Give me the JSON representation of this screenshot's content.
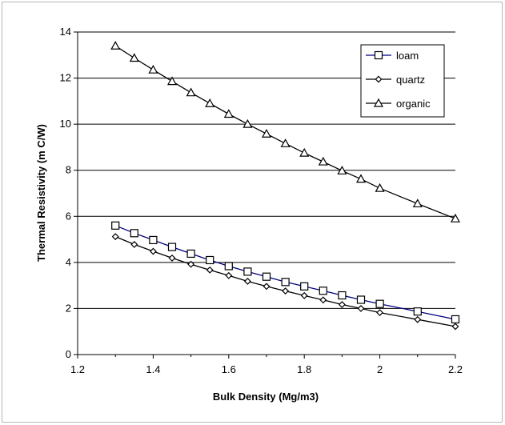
{
  "chart_data": {
    "type": "line",
    "title": "",
    "xlabel": "Bulk Density (Mg/m3)",
    "ylabel": "Thermal Resistivity (m C/W)",
    "xlim": [
      1.2,
      2.2
    ],
    "ylim": [
      0,
      14
    ],
    "xticks": [
      "1.2",
      "1.4",
      "1.6",
      "1.8",
      "2",
      "2.2"
    ],
    "yticks": [
      "0",
      "2",
      "4",
      "6",
      "8",
      "10",
      "12",
      "14"
    ],
    "grid": "horizontal",
    "legend_position": "top-right",
    "series": [
      {
        "name": "loam",
        "marker": "square",
        "color": "#000080",
        "x": [
          1.3,
          1.35,
          1.4,
          1.45,
          1.5,
          1.55,
          1.6,
          1.65,
          1.7,
          1.75,
          1.8,
          1.85,
          1.9,
          1.95,
          2.0,
          2.1,
          2.2
        ],
        "y": [
          5.6,
          5.27,
          4.97,
          4.67,
          4.38,
          4.1,
          3.84,
          3.6,
          3.38,
          3.15,
          2.96,
          2.77,
          2.57,
          2.38,
          2.2,
          1.87,
          1.53
        ]
      },
      {
        "name": "quartz",
        "marker": "diamond",
        "color": "#000000",
        "x": [
          1.3,
          1.35,
          1.4,
          1.45,
          1.5,
          1.55,
          1.6,
          1.65,
          1.7,
          1.75,
          1.8,
          1.85,
          1.9,
          1.95,
          2.0,
          2.1,
          2.2
        ],
        "y": [
          5.12,
          4.78,
          4.48,
          4.19,
          3.92,
          3.67,
          3.43,
          3.18,
          2.96,
          2.76,
          2.56,
          2.37,
          2.17,
          2.0,
          1.82,
          1.52,
          1.22
        ]
      },
      {
        "name": "organic",
        "marker": "triangle",
        "color": "#000000",
        "x": [
          1.3,
          1.35,
          1.4,
          1.45,
          1.5,
          1.55,
          1.6,
          1.65,
          1.7,
          1.75,
          1.8,
          1.85,
          1.9,
          1.95,
          2.0,
          2.1,
          2.2
        ],
        "y": [
          13.4,
          12.87,
          12.36,
          11.86,
          11.37,
          10.9,
          10.44,
          10.0,
          9.58,
          9.16,
          8.75,
          8.37,
          7.98,
          7.62,
          7.22,
          6.55,
          5.9
        ]
      }
    ]
  }
}
